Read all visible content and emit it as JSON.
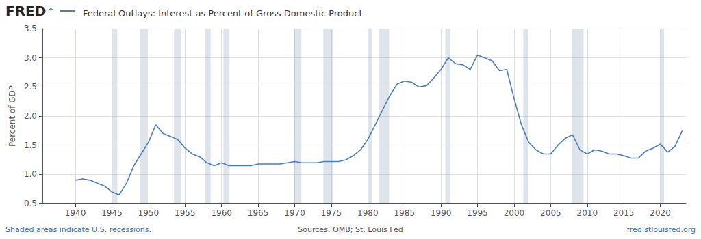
{
  "chart_data": {
    "type": "line",
    "title": "Federal Outlays: Interest as Percent of Gross Domestic Product",
    "ylabel": "Percent of GDP",
    "annotations": [
      "FRED",
      "✦",
      "Shaded areas indicate U.S. recessions.",
      "Sources: OMB; St. Louis Fed",
      "fred.stlouisfed.org"
    ],
    "color": "#4d7eb5",
    "grid": true,
    "xlim": [
      1935.5,
      2023.5
    ],
    "xticks": [
      1940,
      1945,
      1950,
      1955,
      1960,
      1965,
      1970,
      1975,
      1980,
      1985,
      1990,
      1995,
      2000,
      2005,
      2010,
      2015,
      2020
    ],
    "ylim": [
      0.5,
      3.5
    ],
    "yticks": [
      0.5,
      {
        "value": 1.0,
        "label": "1.0"
      },
      1.5,
      {
        "value": 2.0,
        "label": "2.0"
      },
      2.5,
      {
        "value": 3.0,
        "label": "3.0"
      },
      3.5
    ],
    "recession_bands": [
      [
        1945.0,
        1945.75
      ],
      [
        1948.833,
        1949.917
      ],
      [
        1953.5,
        1954.5
      ],
      [
        1957.75,
        1958.5
      ],
      [
        1960.25,
        1961.083
      ],
      [
        1969.917,
        1970.917
      ],
      [
        1973.917,
        1975.25
      ],
      [
        1980.0,
        1980.583
      ],
      [
        1981.5,
        1982.917
      ],
      [
        1990.583,
        1991.25
      ],
      [
        2001.25,
        2001.917
      ],
      [
        2007.917,
        2009.5
      ],
      [
        2020.0,
        2020.5
      ]
    ],
    "x": [
      1940,
      1941,
      1942,
      1943,
      1944,
      1945,
      1946,
      1947,
      1948,
      1949,
      1950,
      1951,
      1952,
      1953,
      1954,
      1955,
      1956,
      1957,
      1958,
      1959,
      1960,
      1961,
      1962,
      1963,
      1964,
      1965,
      1966,
      1967,
      1968,
      1969,
      1970,
      1971,
      1972,
      1973,
      1974,
      1975,
      1976,
      1977,
      1978,
      1979,
      1980,
      1981,
      1982,
      1983,
      1984,
      1985,
      1986,
      1987,
      1988,
      1989,
      1990,
      1991,
      1992,
      1993,
      1994,
      1995,
      1996,
      1997,
      1998,
      1999,
      2000,
      2001,
      2002,
      2003,
      2004,
      2005,
      2006,
      2007,
      2008,
      2009,
      2010,
      2011,
      2012,
      2013,
      2014,
      2015,
      2016,
      2017,
      2018,
      2019,
      2020,
      2021,
      2022,
      2023
    ],
    "values": [
      0.9,
      0.92,
      0.9,
      0.85,
      0.8,
      0.7,
      0.65,
      0.85,
      1.15,
      1.35,
      1.55,
      1.85,
      1.7,
      1.65,
      1.6,
      1.45,
      1.35,
      1.3,
      1.2,
      1.15,
      1.2,
      1.15,
      1.15,
      1.15,
      1.15,
      1.18,
      1.18,
      1.18,
      1.18,
      1.2,
      1.22,
      1.2,
      1.2,
      1.2,
      1.22,
      1.22,
      1.22,
      1.25,
      1.32,
      1.42,
      1.6,
      1.85,
      2.1,
      2.35,
      2.55,
      2.6,
      2.58,
      2.5,
      2.52,
      2.65,
      2.8,
      3.0,
      2.9,
      2.88,
      2.8,
      3.05,
      3.0,
      2.95,
      2.78,
      2.8,
      2.3,
      1.85,
      1.55,
      1.42,
      1.35,
      1.35,
      1.5,
      1.62,
      1.68,
      1.42,
      1.35,
      1.42,
      1.4,
      1.35,
      1.35,
      1.32,
      1.28,
      1.28,
      1.4,
      1.45,
      1.52,
      1.38,
      1.48,
      1.75
    ]
  }
}
